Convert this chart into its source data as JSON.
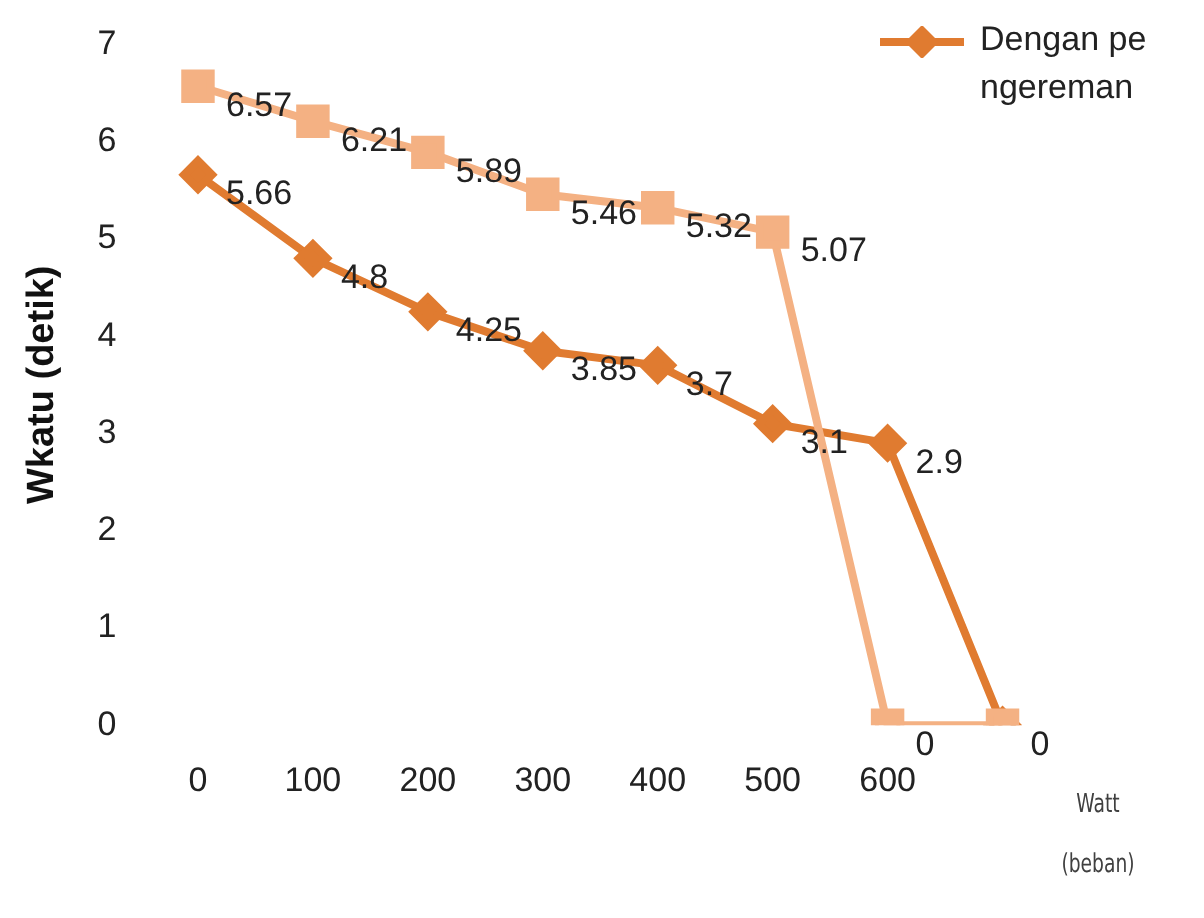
{
  "chart_data": {
    "type": "line",
    "ylabel": "Wkatu (detik)",
    "xlabel": "Watt (beban)",
    "categories": [
      "0",
      "100",
      "200",
      "300",
      "400",
      "500",
      "600",
      null
    ],
    "series": [
      {
        "color": "#f4b183",
        "marker": "square",
        "values": [
          6.57,
          6.21,
          5.89,
          5.46,
          5.32,
          5.07,
          0,
          0
        ],
        "value_labels": [
          "6.57",
          "6.21",
          "5.89",
          "5.46",
          "5.32",
          "5.07",
          "0",
          null
        ]
      },
      {
        "name": "Dengan pengereman",
        "color": "#e07b30",
        "marker": "diamond",
        "values": [
          5.66,
          4.8,
          4.25,
          3.85,
          3.7,
          3.1,
          2.9,
          0
        ],
        "value_labels": [
          "5.66",
          "4.8",
          "4.25",
          "3.85",
          "3.7",
          "3.1",
          "2.9",
          "0"
        ]
      }
    ],
    "ylim": [
      0,
      7
    ],
    "yticks": [
      0,
      1,
      2,
      3,
      4,
      5,
      6,
      7
    ],
    "grid": false,
    "legend": "top right",
    "line_style": "solid"
  }
}
